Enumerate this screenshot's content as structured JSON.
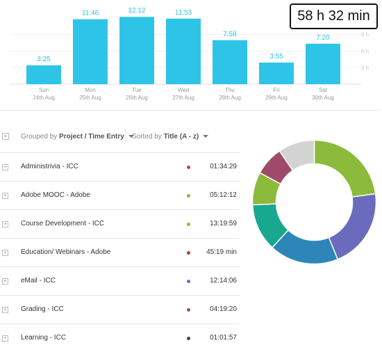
{
  "summary": {
    "total": "58 h 32 min"
  },
  "chart_data": {
    "type": "bar",
    "categories": [
      "Sun",
      "Mon",
      "Tue",
      "Wed",
      "Thu",
      "Fri",
      "Sat"
    ],
    "dates": [
      "24th Aug",
      "25th Aug",
      "26th Aug",
      "27th Aug",
      "28th Aug",
      "29th Aug",
      "30th Aug"
    ],
    "values": [
      3.42,
      11.77,
      12.2,
      11.88,
      7.97,
      3.92,
      7.33
    ],
    "value_labels": [
      "3:25",
      "11:46",
      "12:12",
      "11:53",
      "7:58",
      "3:55",
      "7:20"
    ],
    "yticks": [
      3,
      6,
      9
    ],
    "ytick_labels": [
      "3 h",
      "6 h",
      "9 h"
    ],
    "ylim": [
      0,
      14.5
    ],
    "bar_color": "#2ec4e8",
    "label_color": "#2ec4e8",
    "grid": true
  },
  "toolbar": {
    "grouped_prefix": "Grouped by",
    "grouped_value": "Project / Time Entry",
    "sorted_prefix": "Sorted by",
    "sorted_value": "Title (A - z)"
  },
  "entries": [
    {
      "title": "Administrivia - ICC",
      "time": "01:34:29",
      "color": "#a04a6a"
    },
    {
      "title": "Adobe MOOC - Adobe",
      "time": "05:12:12",
      "color": "#8cba3a"
    },
    {
      "title": "Course Development - ICC",
      "time": "13:19:59",
      "color": "#8cba3a"
    },
    {
      "title": "Education/ Webinars - Adobe",
      "time": "45:19 min",
      "color": "#c0392b"
    },
    {
      "title": "eMail - ICC",
      "time": "12:14:06",
      "color": "#6b6bbd"
    },
    {
      "title": "Grading - ICC",
      "time": "04:19:20",
      "color": "#a04a6a"
    },
    {
      "title": "Learning - ICC",
      "time": "01:01:57",
      "color": "#5a3a2a"
    }
  ],
  "donut": {
    "values": [
      24,
      22,
      19,
      13,
      9,
      8,
      10
    ],
    "colors": [
      "#8cba3a",
      "#6b6bbd",
      "#2e86b8",
      "#17a88f",
      "#8cba3a",
      "#a04a6a",
      "#d3d3d3"
    ]
  },
  "icons": {
    "expand": "+"
  }
}
